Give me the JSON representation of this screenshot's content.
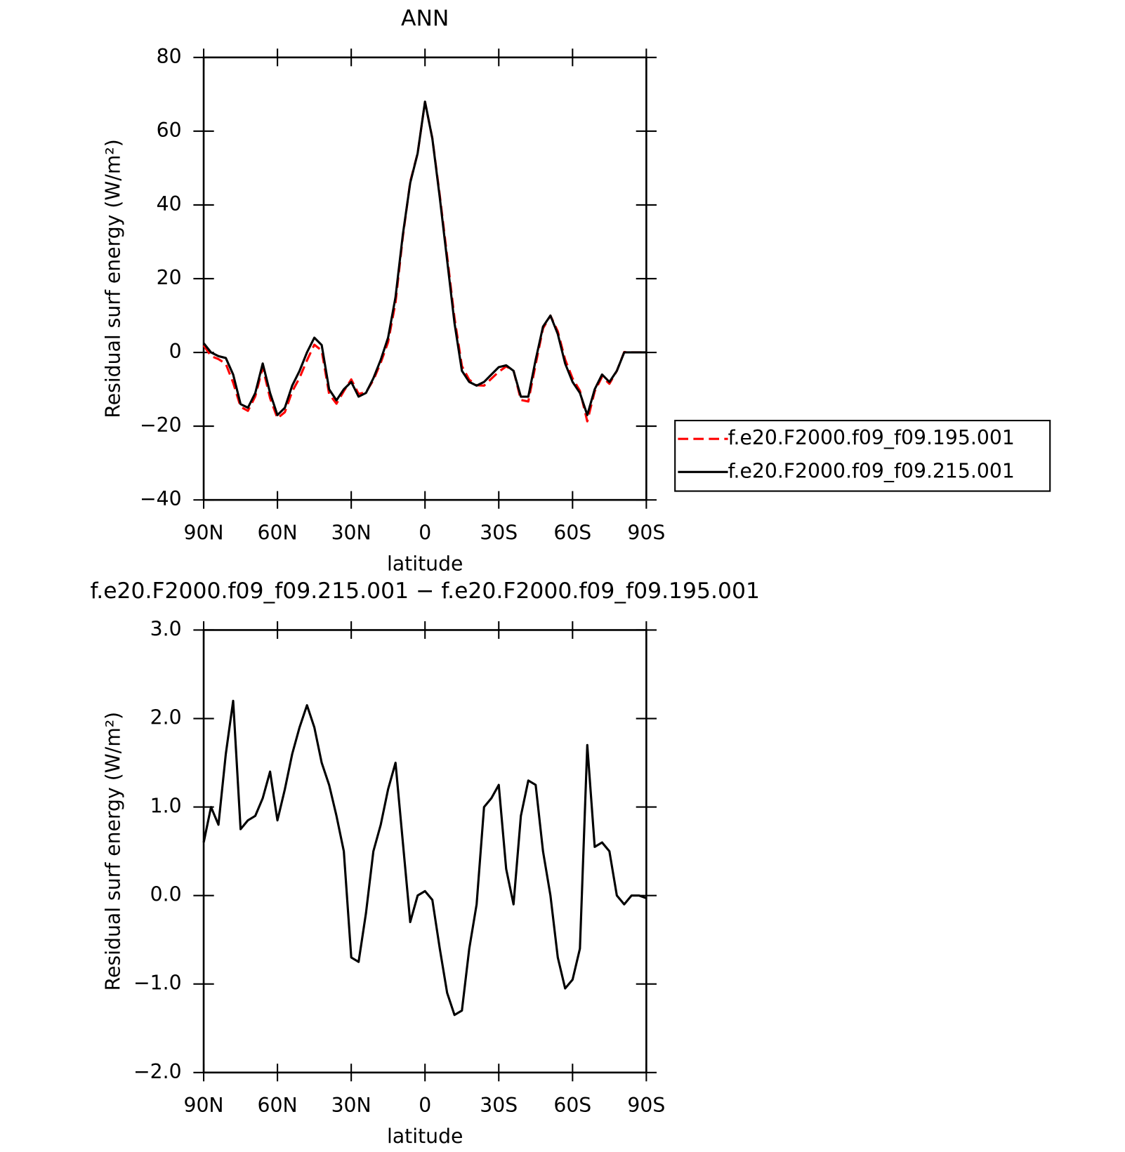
{
  "chart_data": [
    {
      "type": "line",
      "title": "ANN",
      "xlabel": "latitude",
      "ylabel": "Residual surf energy (W/m²)",
      "x": [
        90,
        87,
        84,
        81,
        78,
        75,
        72,
        69,
        66,
        63,
        60,
        57,
        54,
        51,
        48,
        45,
        42,
        39,
        36,
        33,
        30,
        27,
        24,
        21,
        18,
        15,
        12,
        9,
        6,
        3,
        0,
        -3,
        -6,
        -9,
        -12,
        -15,
        -18,
        -21,
        -24,
        -27,
        -30,
        -33,
        -36,
        -39,
        -42,
        -45,
        -48,
        -51,
        -54,
        -57,
        -60,
        -63,
        -66,
        -69,
        -72,
        -75,
        -78,
        -81,
        -84,
        -87,
        -90
      ],
      "series": [
        {
          "name": "f.e20.F2000.f09_f09.195.001",
          "color": "#ff0000",
          "dashed": true,
          "values": [
            1.9,
            -1.0,
            -1.8,
            -3.1,
            -8.2,
            -14.75,
            -15.85,
            -11.9,
            -4.1,
            -12.4,
            -17.85,
            -16.2,
            -10.6,
            -6.9,
            -2.15,
            2.1,
            0.5,
            -11.25,
            -13.9,
            -10.5,
            -7.3,
            -11.25,
            -10.8,
            -7.5,
            -2.8,
            2.8,
            13.5,
            31.4,
            46.3,
            54,
            67.95,
            58.05,
            42.6,
            26.1,
            9.35,
            -3.7,
            -7.4,
            -8.9,
            -9,
            -7.1,
            -5.25,
            -3.8,
            -4.9,
            -12.9,
            -13.3,
            -3.25,
            6.5,
            10,
            5.7,
            -1.95,
            -7.05,
            -10.4,
            -18.7,
            -10.55,
            -6.6,
            -8.5,
            -5,
            0.1,
            0,
            0,
            0.03
          ]
        },
        {
          "name": "f.e20.F2000.f09_f09.215.001",
          "color": "#000000",
          "dashed": false,
          "values": [
            2.5,
            0,
            -1,
            -1.5,
            -6,
            -14,
            -15,
            -11,
            -3,
            -11,
            -17,
            -15,
            -9,
            -5,
            0,
            4,
            2,
            -10,
            -13,
            -10,
            -8,
            -12,
            -11,
            -7,
            -2,
            4,
            15,
            32,
            46,
            54,
            68,
            58,
            42,
            25,
            8,
            -5,
            -8,
            -9,
            -8,
            -6,
            -4,
            -3.5,
            -5,
            -12,
            -12,
            -2,
            7,
            10,
            5,
            -3,
            -8,
            -11,
            -17,
            -10,
            -6,
            -8,
            -5,
            0,
            0,
            0,
            0
          ]
        }
      ],
      "xlim": [
        90,
        -90
      ],
      "xticks": [
        {
          "value": 90,
          "label": "90N"
        },
        {
          "value": 60,
          "label": "60N"
        },
        {
          "value": 30,
          "label": "30N"
        },
        0,
        {
          "value": -30,
          "label": "30S"
        },
        {
          "value": -60,
          "label": "60S"
        },
        {
          "value": -90,
          "label": "90S"
        }
      ],
      "ylim": [
        -40,
        80
      ],
      "yticks": [
        {
          "value": -40,
          "label": "−40"
        },
        {
          "value": -20,
          "label": "−20"
        },
        0,
        20,
        40,
        60,
        80
      ],
      "legend": "right"
    },
    {
      "type": "line",
      "title": "f.e20.F2000.f09_f09.215.001 − f.e20.F2000.f09_f09.195.001",
      "xlabel": "latitude",
      "ylabel": "Residual surf energy (W/m²)",
      "x": [
        90,
        87,
        84,
        81,
        78,
        75,
        72,
        69,
        66,
        63,
        60,
        57,
        54,
        51,
        48,
        45,
        42,
        39,
        36,
        33,
        30,
        27,
        24,
        21,
        18,
        15,
        12,
        9,
        6,
        3,
        0,
        -3,
        -6,
        -9,
        -12,
        -15,
        -18,
        -21,
        -24,
        -27,
        -30,
        -33,
        -36,
        -39,
        -42,
        -45,
        -48,
        -51,
        -54,
        -57,
        -60,
        -63,
        -66,
        -69,
        -72,
        -75,
        -78,
        -81,
        -84,
        -87,
        -90
      ],
      "series": [
        {
          "color": "#000000",
          "dashed": false,
          "values": [
            0.6,
            1.0,
            0.8,
            1.6,
            2.2,
            0.75,
            0.85,
            0.9,
            1.1,
            1.4,
            0.85,
            1.2,
            1.6,
            1.9,
            2.15,
            1.9,
            1.5,
            1.25,
            0.9,
            0.5,
            -0.7,
            -0.75,
            -0.2,
            0.5,
            0.8,
            1.2,
            1.5,
            0.6,
            -0.3,
            0,
            0.05,
            -0.05,
            -0.6,
            -1.1,
            -1.35,
            -1.3,
            -0.6,
            -0.1,
            1.0,
            1.1,
            1.25,
            0.3,
            -0.1,
            0.9,
            1.3,
            1.25,
            0.5,
            0.0,
            -0.7,
            -1.05,
            -0.95,
            -0.6,
            1.7,
            0.55,
            0.6,
            0.5,
            0.0,
            -0.1,
            0,
            0,
            -0.03
          ]
        }
      ],
      "xlim": [
        90,
        -90
      ],
      "xticks": [
        {
          "value": 90,
          "label": "90N"
        },
        {
          "value": 60,
          "label": "60N"
        },
        {
          "value": 30,
          "label": "30N"
        },
        0,
        {
          "value": -30,
          "label": "30S"
        },
        {
          "value": -60,
          "label": "60S"
        },
        {
          "value": -90,
          "label": "90S"
        }
      ],
      "ylim": [
        -2,
        3
      ],
      "yticks": [
        {
          "value": -2,
          "label": "−2.0"
        },
        {
          "value": -1,
          "label": "−1.0"
        },
        {
          "value": 0,
          "label": "0.0"
        },
        {
          "value": 1,
          "label": "1.0"
        },
        {
          "value": 2,
          "label": "2.0"
        },
        {
          "value": 3,
          "label": "3.0"
        }
      ]
    }
  ]
}
